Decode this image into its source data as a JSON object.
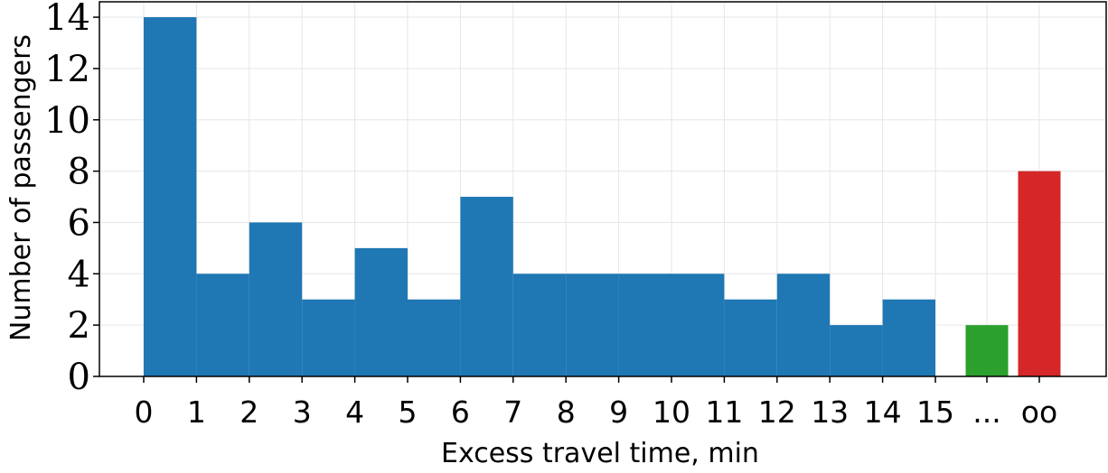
{
  "chart_data": {
    "type": "bar",
    "title": "",
    "xlabel": "Excess travel time, min",
    "ylabel": "Number of passengers",
    "ylim": [
      0,
      14.6
    ],
    "yticks": [
      0,
      2,
      4,
      6,
      8,
      10,
      12,
      14
    ],
    "xticks": [
      "0",
      "1",
      "2",
      "3",
      "4",
      "5",
      "6",
      "7",
      "8",
      "9",
      "10",
      "11",
      "12",
      "13",
      "14",
      "15",
      "...",
      "oo"
    ],
    "grid": true,
    "legend": "none",
    "series": [
      {
        "color": "#1f77b4",
        "bins": [
          0,
          1,
          2,
          3,
          4,
          5,
          6,
          7,
          8,
          9,
          10,
          11,
          12,
          13,
          14,
          15
        ],
        "values": [
          14,
          4,
          6,
          3,
          5,
          3,
          7,
          4,
          4,
          4,
          4,
          3,
          4,
          2,
          3
        ]
      },
      {
        "color": "#2ca02c",
        "category": "...",
        "values": [
          2
        ]
      },
      {
        "color": "#d62728",
        "category": "oo",
        "values": [
          8
        ]
      }
    ]
  }
}
